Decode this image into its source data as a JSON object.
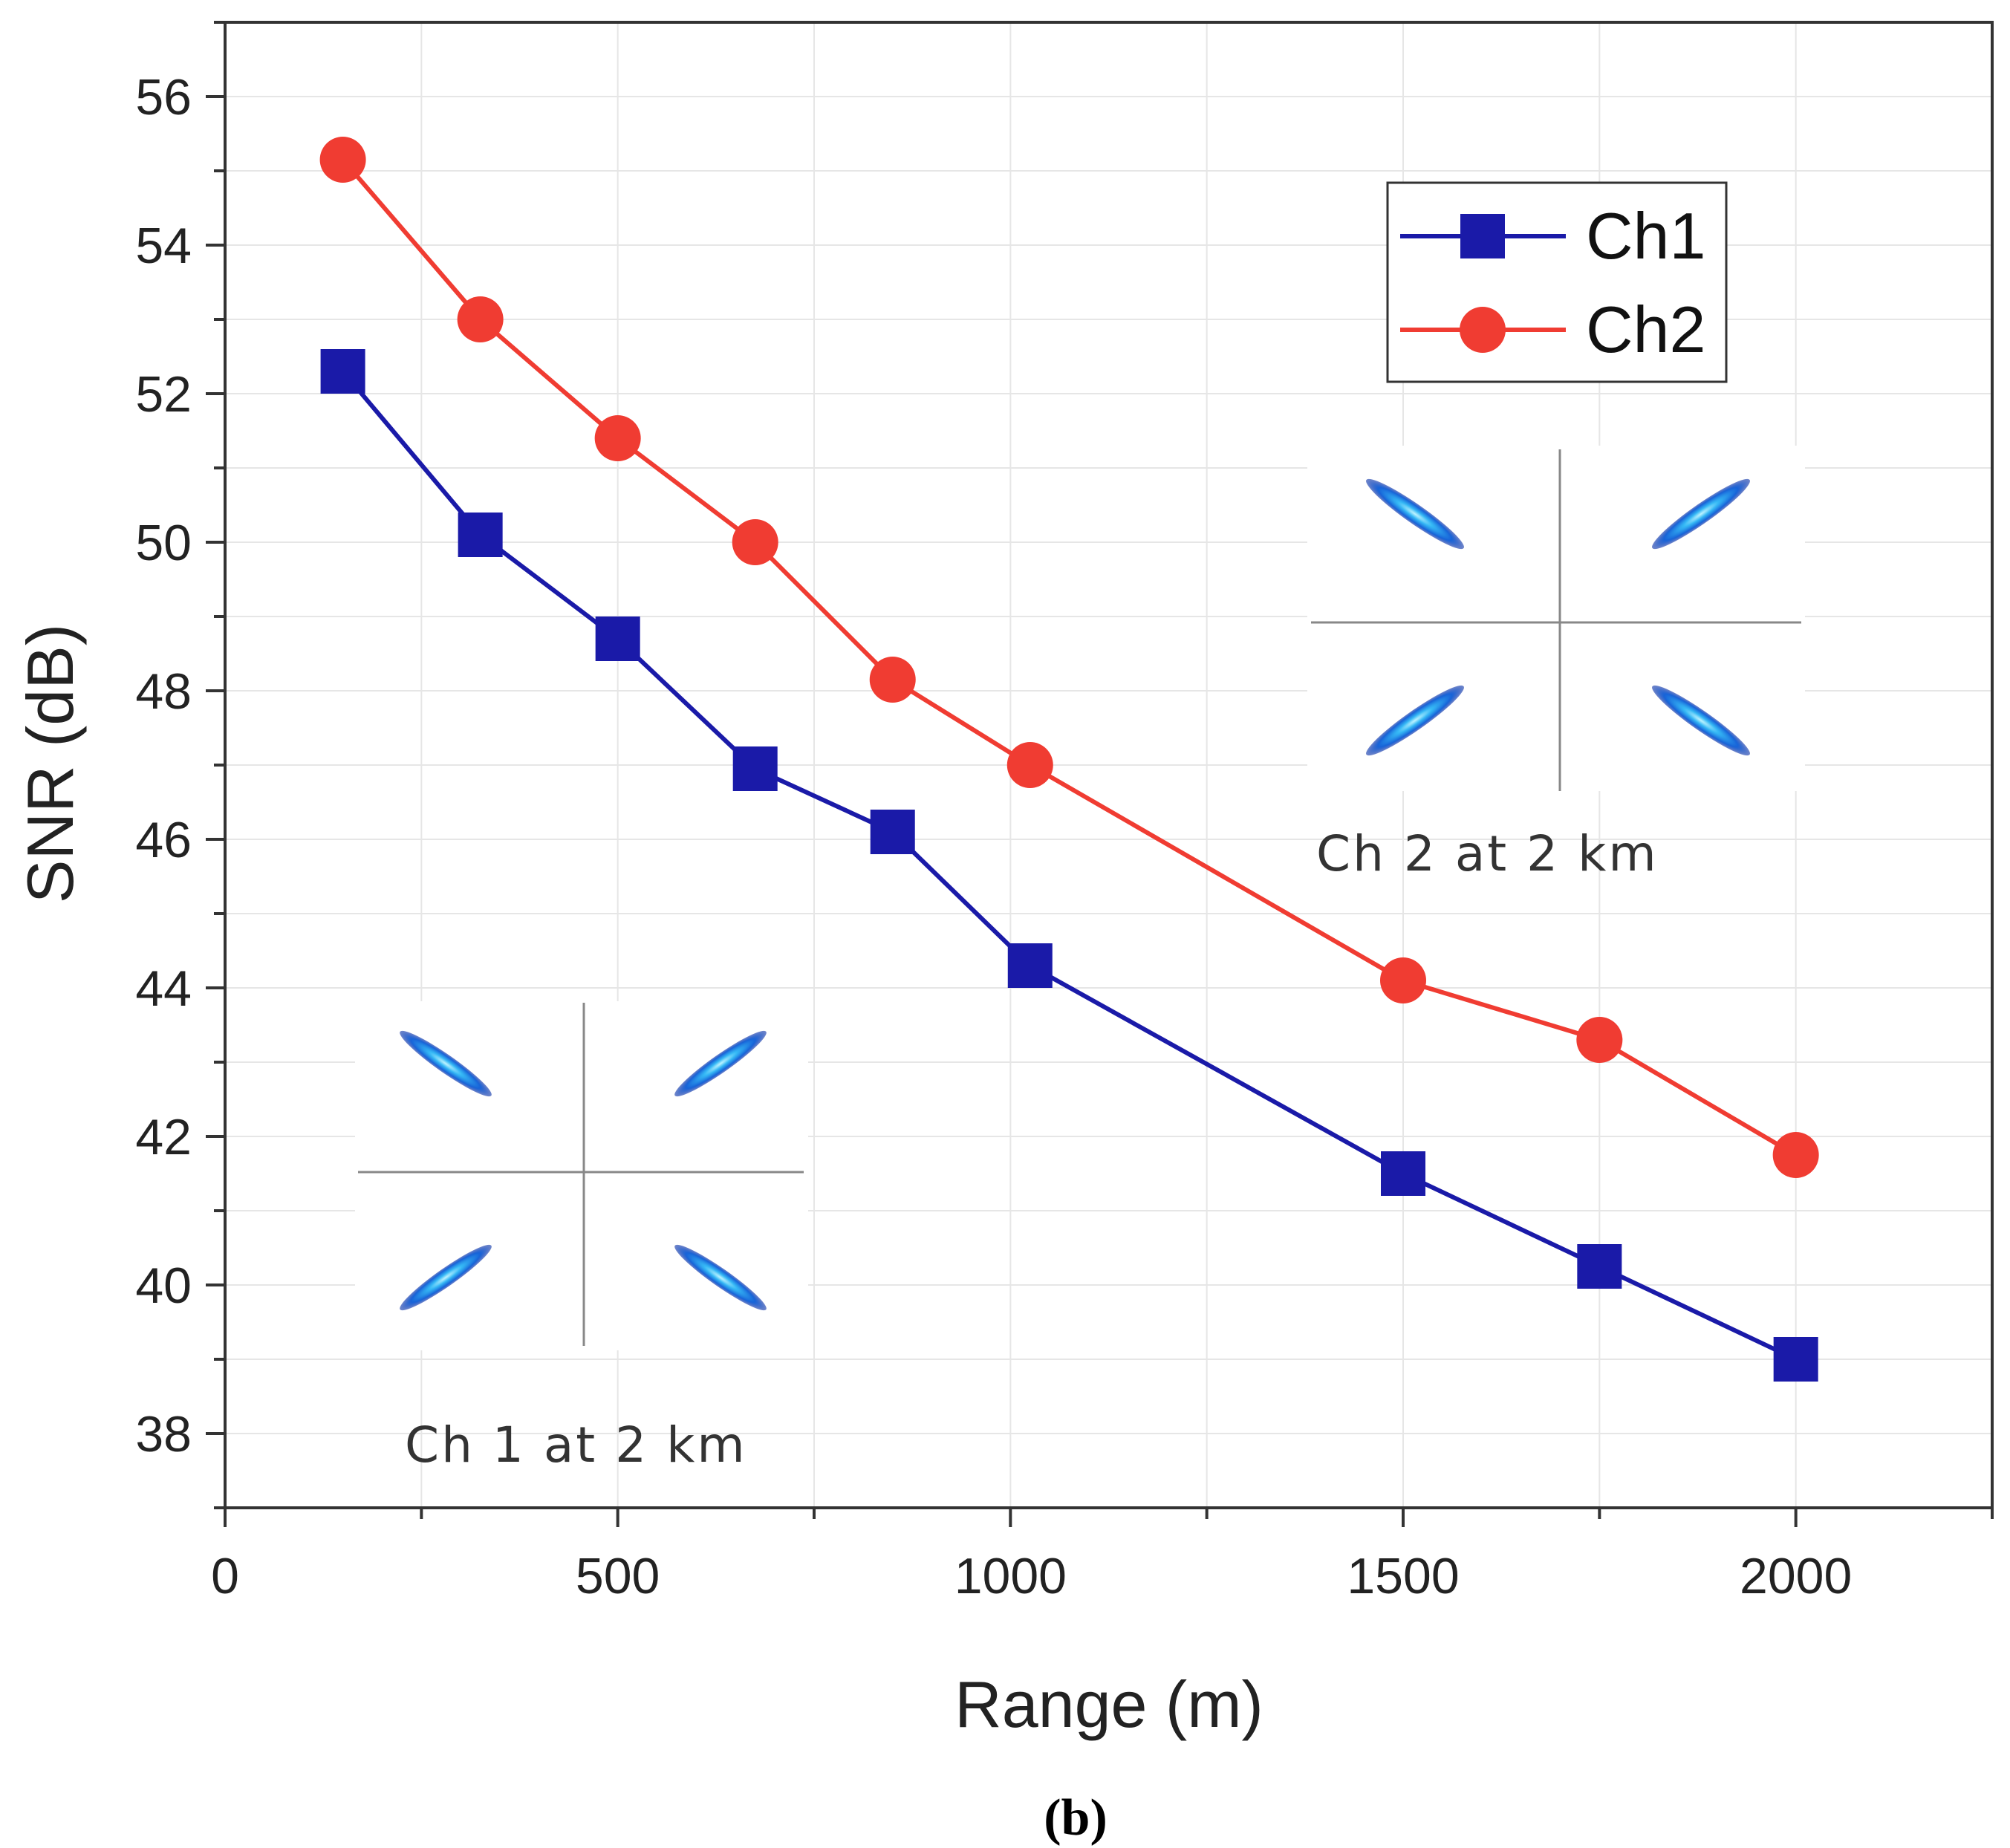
{
  "chart_data": {
    "type": "line",
    "xlabel": "Range (m)",
    "ylabel": "SNR (dB)",
    "xlim": [
      0,
      2250
    ],
    "ylim": [
      37,
      57
    ],
    "x_ticks": [
      0,
      500,
      1000,
      1500,
      2000
    ],
    "y_ticks": [
      38,
      40,
      42,
      44,
      46,
      48,
      50,
      52,
      54,
      56
    ],
    "x": [
      150,
      325,
      500,
      675,
      850,
      1025,
      1500,
      1750,
      2000
    ],
    "series": [
      {
        "name": "Ch1",
        "marker": "square",
        "color": "#1a1aa8",
        "values": [
          52.3,
          50.1,
          48.7,
          46.95,
          46.1,
          44.3,
          41.5,
          40.25,
          39.0
        ]
      },
      {
        "name": "Ch2",
        "marker": "circle",
        "color": "#f03c32",
        "values": [
          55.15,
          53.0,
          51.4,
          50.0,
          48.15,
          47.0,
          44.1,
          43.3,
          41.75
        ]
      }
    ],
    "legend_position": "top-right",
    "grid": true,
    "insets": [
      {
        "label": "Ch 2  at 2 km",
        "position": "right-middle"
      },
      {
        "label": "Ch 1  at 2 km",
        "position": "bottom-left"
      }
    ],
    "subfigure_label": "(b)"
  }
}
